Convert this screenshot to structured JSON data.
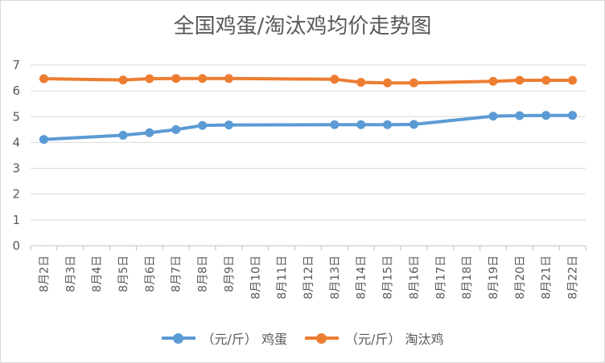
{
  "chart_data": {
    "type": "line",
    "title": "全国鸡蛋/淘汰鸡均价走势图",
    "xlabel": "",
    "ylabel": "",
    "ylim": [
      0,
      7
    ],
    "yticks": [
      "0",
      "1",
      "2",
      "3",
      "4",
      "5",
      "6",
      "7"
    ],
    "grid": true,
    "legend_position": "bottom",
    "categories": [
      "8月2日",
      "8月3日",
      "8月4日",
      "8月5日",
      "8月6日",
      "8月7日",
      "8月8日",
      "8月9日",
      "8月10日",
      "8月11日",
      "8月12日",
      "8月13日",
      "8月14日",
      "8月15日",
      "8月16日",
      "8月17日",
      "8月18日",
      "8月19日",
      "8月20日",
      "8月21日",
      "8月22日"
    ],
    "series": [
      {
        "name": "（元/斤） 鸡蛋",
        "color": "#5B9BD5",
        "values": [
          4.12,
          null,
          null,
          4.28,
          4.38,
          4.5,
          4.66,
          4.68,
          null,
          null,
          null,
          4.69,
          4.69,
          4.69,
          4.7,
          null,
          null,
          5.02,
          5.04,
          5.05,
          5.05
        ]
      },
      {
        "name": "（元/斤） 淘汰鸡",
        "color": "#ED7D31",
        "values": [
          6.47,
          null,
          null,
          6.42,
          6.47,
          6.48,
          6.48,
          6.48,
          null,
          null,
          null,
          6.45,
          6.33,
          6.31,
          6.31,
          null,
          null,
          6.37,
          6.41,
          6.41,
          6.41
        ]
      }
    ]
  }
}
